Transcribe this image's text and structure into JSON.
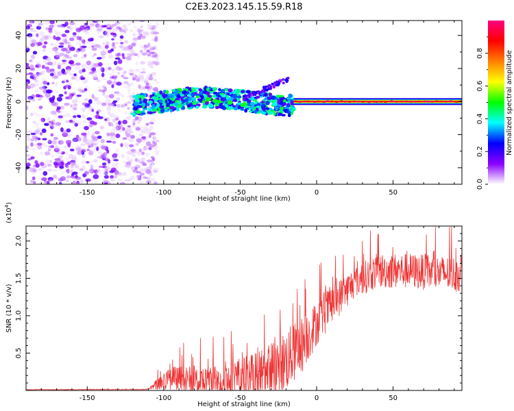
{
  "title": "C2E3.2023.145.15.59.R18",
  "chart_data": [
    {
      "type": "heatmap",
      "xlabel": "Height of straight line (km)",
      "ylabel": "Frequency (Hz)",
      "xlim": [
        -190,
        95
      ],
      "ylim": [
        -50,
        49
      ],
      "xticks": [
        -150,
        -100,
        -50,
        0,
        50
      ],
      "yticks": [
        -40,
        -20,
        0,
        20,
        40
      ],
      "colorbar": {
        "label": "Normalized spectral amplitude",
        "range": [
          0,
          1
        ],
        "ticks": [
          0.0,
          0.2,
          0.4,
          0.6,
          0.8
        ],
        "tick_labels": [
          "0.0",
          "0.2",
          "0.4",
          "0.6",
          "0.8"
        ],
        "colors": [
          "#ffffff",
          "#8a00ff",
          "#0000ff",
          "#00ffff",
          "#00ff00",
          "#ffff00",
          "#ff8000",
          "#ff0000",
          "#ff0080"
        ]
      },
      "features": [
        {
          "name": "noise region",
          "x_range": [
            -190,
            -110
          ],
          "y_range": [
            -50,
            49
          ],
          "level": "low"
        },
        {
          "name": "signal track",
          "x_range": [
            -120,
            -15
          ],
          "center_hz": 0,
          "spread_hz": 6,
          "level": "medium"
        },
        {
          "name": "rising arc",
          "x_range": [
            -48,
            -18
          ],
          "y_range": [
            2,
            14
          ],
          "level": "low"
        },
        {
          "name": "stable carrier",
          "x_range": [
            -15,
            95
          ],
          "center_hz": 0,
          "spread_hz": 1.5,
          "level": "high"
        }
      ]
    },
    {
      "type": "line",
      "xlabel": "Height of straight line (km)",
      "ylabel": "SNR (10 * v/v)",
      "y_multiplier": "(x10^4)",
      "y_multiplier_base": "(x10",
      "y_multiplier_exp": "4",
      "y_multiplier_close": ")",
      "xlim": [
        -190,
        95
      ],
      "ylim": [
        0,
        2.2
      ],
      "xticks": [
        -150,
        -100,
        -50,
        0,
        50
      ],
      "yticks": [
        0.5,
        1.0,
        1.5,
        2.0
      ],
      "ytick_labels": [
        "0.5",
        "1.0",
        "1.5",
        "2.0"
      ],
      "color": "#ee3333",
      "series_profile": [
        {
          "x": -190,
          "base": 0.01,
          "amp": 0.005
        },
        {
          "x": -110,
          "base": 0.015,
          "amp": 0.01
        },
        {
          "x": -103,
          "base": 0.1,
          "amp": 0.15
        },
        {
          "x": -95,
          "base": 0.15,
          "amp": 0.3
        },
        {
          "x": -75,
          "base": 0.12,
          "amp": 0.35
        },
        {
          "x": -55,
          "base": 0.15,
          "amp": 0.4
        },
        {
          "x": -35,
          "base": 0.2,
          "amp": 0.6
        },
        {
          "x": -20,
          "base": 0.4,
          "amp": 0.7
        },
        {
          "x": -10,
          "base": 0.6,
          "amp": 0.65
        },
        {
          "x": 0,
          "base": 0.9,
          "amp": 0.5
        },
        {
          "x": 10,
          "base": 1.15,
          "amp": 0.45
        },
        {
          "x": 25,
          "base": 1.45,
          "amp": 0.35
        },
        {
          "x": 40,
          "base": 1.6,
          "amp": 0.4
        },
        {
          "x": 60,
          "base": 1.6,
          "amp": 0.4
        },
        {
          "x": 95,
          "base": 1.55,
          "amp": 0.4
        }
      ]
    }
  ]
}
